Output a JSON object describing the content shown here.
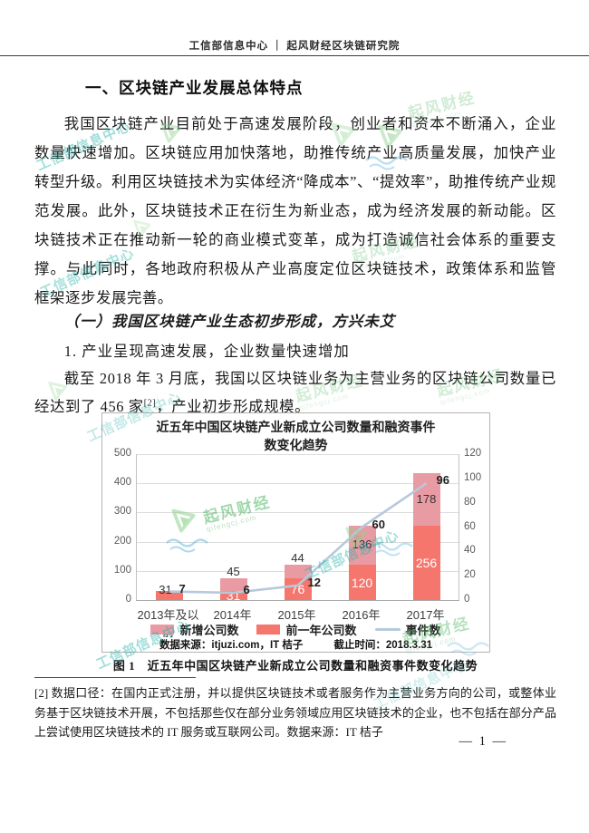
{
  "page": {
    "header": "工信部信息中心 ｜ 起风财经区块链研究院",
    "section_title": "一、区块链产业发展总体特点",
    "paragraph1": "我国区块链产业目前处于高速发展阶段，创业者和资本不断涌入，企业数量快速增加。区块链应用加快落地，助推传统产业高质量发展，加快产业转型升级。利用区块链技术为实体经济“降成本”、“提效率”，助推传统产业规范发展。此外，区块链技术正在衍生为新业态，成为经济发展的新动能。区块链技术正在推动新一轮的商业模式变革，成为打造诚信社会体系的重要支撑。与此同时，各地政府积极从产业高度定位区块链技术，政策体系和监管框架逐步发展完善。",
    "subsection_title": "（一）我国区块链产业生态初步形成，方兴未艾",
    "point_title": "1. 产业呈现高速发展，企业数量快速增加",
    "paragraph2_pre": "截至 2018 年 3 月底，我国以区块链业务为主营业务的区块链公司数量已经达到了 456 家",
    "paragraph2_sup": "[2]",
    "paragraph2_post": "，产业初步形成规模。",
    "figure_caption": "图 1　近五年中国区块链产业新成立公司数量和融资事件数变化趋势",
    "footnote": "[2] 数据口径：在国内正式注册，并以提供区块链技术或者服务作为主营业务方向的公司，或整体业务基于区块链技术开展，不包括那些仅在部分业务领域应用区块链技术的企业，也不包括在部分产品上尝试使用区块链技术的 IT 服务或互联网公司。数据来源：IT 桔子",
    "page_number": "— 1 —"
  },
  "chart_data": {
    "type": "bar",
    "stacked": true,
    "title": "近五年中国区块链产业新成立公司数量和融资事件数变化趋势",
    "title_lines": [
      "近五年中国区块链产业新成立公司数量和融资事件",
      "数变化趋势"
    ],
    "categories": [
      "2013年及以前",
      "2014年",
      "2015年",
      "2016年",
      "2017年"
    ],
    "series": [
      {
        "name": "新增公司数",
        "type": "bar",
        "values": [
          0,
          45,
          44,
          136,
          178
        ],
        "color": "#e99ba3",
        "label_color": "#333333"
      },
      {
        "name": "前一年公司数",
        "type": "bar",
        "values": [
          31,
          31,
          76,
          120,
          256
        ],
        "color": "#f5766d",
        "label_color": "#ffffff"
      },
      {
        "name": "事件数",
        "type": "line",
        "values": [
          7,
          6,
          12,
          60,
          96
        ],
        "color": "#b6c9dc",
        "axis": "right"
      }
    ],
    "bar_totals": [
      31,
      76,
      120,
      256,
      434
    ],
    "left_axis": {
      "min": 0,
      "max": 500,
      "step": 100,
      "ticks": [
        0,
        100,
        200,
        300,
        400,
        500
      ]
    },
    "right_axis": {
      "min": 0,
      "max": 120,
      "step": 20,
      "ticks": [
        0,
        20,
        40,
        60,
        80,
        100,
        120
      ]
    },
    "grid": true,
    "legend_position": "bottom",
    "source_left": "数据来源：itjuzi.com，IT 桔子",
    "source_right": "截止时间：2018.3.31"
  },
  "watermarks": {
    "agency_text": "工信部信息中心",
    "brand_text": "起风财经",
    "brand_url": "qifengcj.com",
    "brand_green": "#52b965",
    "agency_teal": "#23b0a8",
    "wave_blue": "#6fb9de"
  }
}
